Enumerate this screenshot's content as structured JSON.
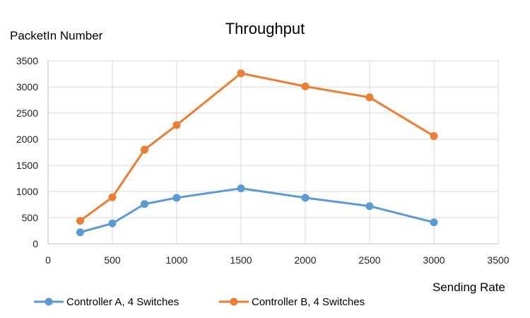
{
  "chart_data": {
    "type": "line",
    "title": "Throughput",
    "xlabel": "Sending Rate",
    "ylabel": "PacketIn Number",
    "xlim": [
      0,
      3500
    ],
    "ylim": [
      0,
      3500
    ],
    "xticks": [
      0,
      500,
      1000,
      1500,
      2000,
      2500,
      3000,
      3500
    ],
    "yticks": [
      0,
      500,
      1000,
      1500,
      2000,
      2500,
      3000,
      3500
    ],
    "grid": true,
    "legend_position": "bottom",
    "series": [
      {
        "name": "Controller A, 4 Switches",
        "color": "#5b9bd5",
        "x": [
          250,
          500,
          750,
          1000,
          1500,
          2000,
          2500,
          3000
        ],
        "y": [
          220,
          390,
          760,
          880,
          1060,
          880,
          720,
          410
        ]
      },
      {
        "name": "Controller B, 4 Switches",
        "color": "#ed7d31",
        "x": [
          250,
          500,
          750,
          1000,
          1500,
          2000,
          2500,
          3000
        ],
        "y": [
          440,
          890,
          1800,
          2270,
          3260,
          3010,
          2800,
          2060
        ]
      }
    ]
  }
}
